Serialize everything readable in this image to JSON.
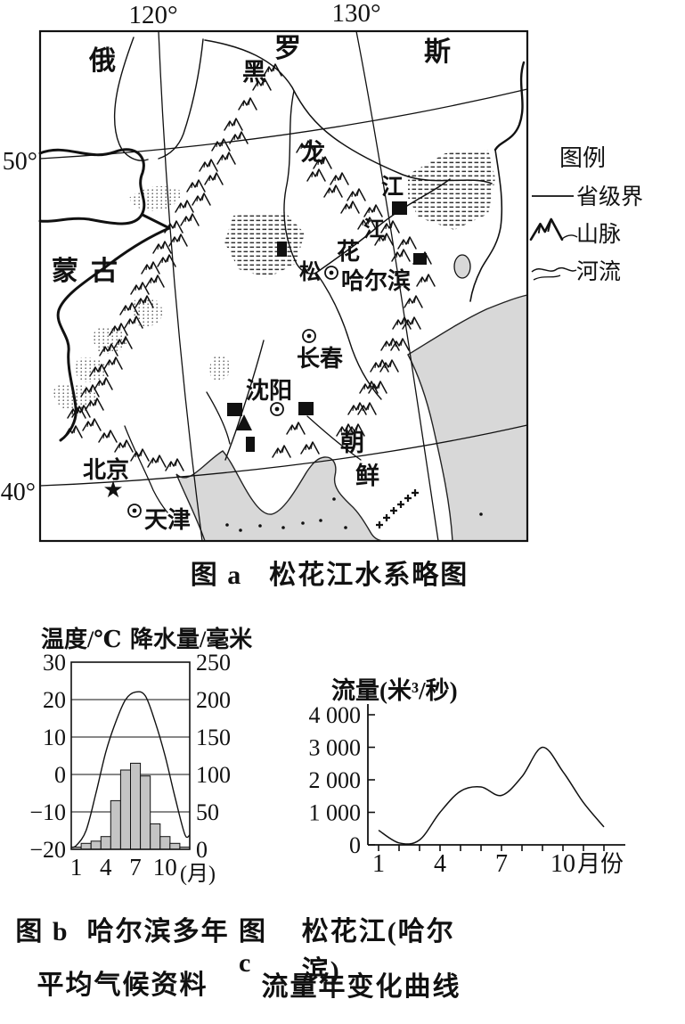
{
  "figure_a": {
    "caption_prefix": "图 a",
    "caption_text": "松花江水系略图",
    "lon_ticks": [
      "120°",
      "130°"
    ],
    "lat_ticks": [
      "50°",
      "40°"
    ],
    "countries": {
      "russia_chars": [
        "俄",
        "罗",
        "斯"
      ],
      "mongolia": "蒙古",
      "korea_chars": [
        "朝",
        "鲜"
      ]
    },
    "rivers": {
      "heilongjiang_chars": [
        "黑",
        "龙",
        "江"
      ],
      "songhuajiang_chars": [
        "松",
        "花",
        "江"
      ]
    },
    "cities": {
      "haerbin": "哈尔滨",
      "changchun": "长春",
      "shenyang": "沈阳",
      "beijing": "北京",
      "tianjin": "天津"
    },
    "legend": {
      "title": "图例",
      "items": [
        "省级界",
        "山脉",
        "河流"
      ]
    }
  },
  "captions": {
    "b1_prefix": "图 b",
    "b1_text": "哈尔滨多年",
    "b2_text": "平均气候资料",
    "c1_prefix": "图 c",
    "c1_text": "松花江(哈尔滨)",
    "c2_text": "流量年变化曲线"
  },
  "chart_data": [
    {
      "id": "fig_b",
      "type": "bar",
      "title": "哈尔滨多年平均气候资料",
      "x_months": [
        1,
        2,
        3,
        4,
        5,
        6,
        7,
        8,
        9,
        10,
        11,
        12
      ],
      "x_tick_labels": [
        "1",
        "4",
        "7",
        "10"
      ],
      "x_tick_months": [
        1,
        4,
        7,
        10
      ],
      "x_unit_label": "(月)",
      "left_axis": {
        "label": "温度/℃",
        "ticks": [
          "30",
          "20",
          "10",
          "0",
          "−10",
          "−20"
        ],
        "range": [
          -20,
          30
        ]
      },
      "right_axis": {
        "label": "降水量/毫米",
        "ticks": [
          "250",
          "200",
          "150",
          "100",
          "50",
          "0"
        ],
        "range": [
          0,
          250
        ]
      },
      "grid": true,
      "series": [
        {
          "name": "气温",
          "type": "line",
          "axis": "left",
          "values": [
            -19,
            -15,
            -5,
            6,
            14,
            20,
            22,
            21,
            14,
            5,
            -6,
            -16
          ]
        },
        {
          "name": "降水量",
          "type": "bar",
          "axis": "right",
          "values": [
            3,
            8,
            11,
            17,
            65,
            106,
            115,
            98,
            34,
            17,
            8,
            3
          ]
        }
      ]
    },
    {
      "id": "fig_c",
      "type": "line",
      "title": "松花江(哈尔滨)流量年变化曲线",
      "y_axis": {
        "label": "流量(米³/秒)",
        "ticks": [
          "4 000",
          "3 000",
          "2 000",
          "1 000",
          "0"
        ],
        "range": [
          0,
          4000
        ]
      },
      "x_months": [
        1,
        2,
        3,
        4,
        5,
        6,
        7,
        8,
        9,
        10,
        11,
        12
      ],
      "x_tick_labels": [
        "1",
        "4",
        "7",
        "10"
      ],
      "x_tick_months": [
        1,
        4,
        7,
        10
      ],
      "x_unit_label": "月份",
      "grid": false,
      "values": [
        450,
        60,
        150,
        1000,
        1650,
        1780,
        1520,
        2100,
        3000,
        2250,
        1300,
        550
      ]
    }
  ]
}
